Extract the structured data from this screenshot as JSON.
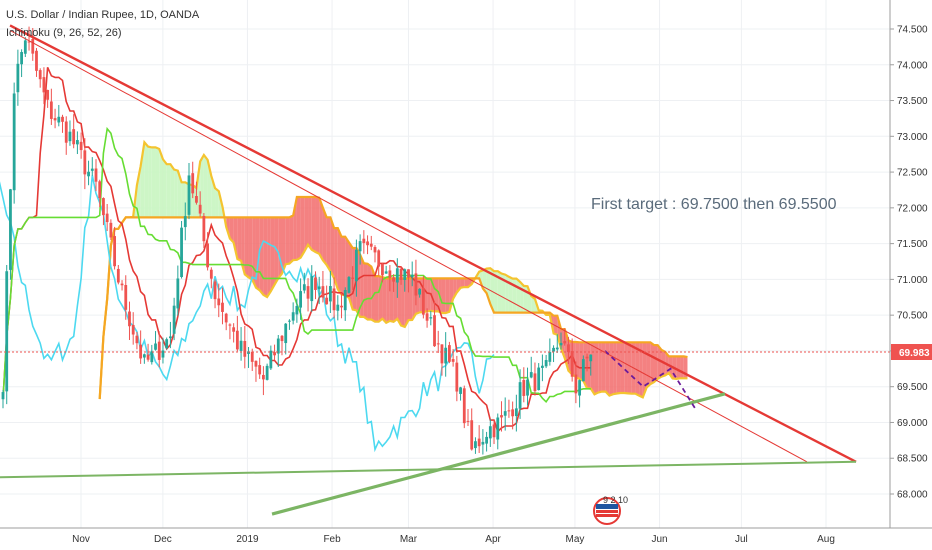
{
  "header": {
    "title": "U.S. Dollar / Indian Rupee, 1D, OANDA",
    "indicator": "Ichimoku (9, 26, 52, 26)"
  },
  "annotation": "First target : 69.7500 then 69.5500",
  "logo_text": "9 2 10",
  "colors": {
    "bull": "#26a69a",
    "bear": "#ef5350",
    "trend_red": "#e53935",
    "trend_green": "#7cb564",
    "conversion": "#e53935",
    "base": "#66dd33",
    "lagging": "#4dd9f0",
    "cloud_green": "#c8f5c0",
    "cloud_red": "#f26b6b",
    "span_a": "#f4c430",
    "current_line": "#ef5350",
    "projection": "#6a1b9a"
  },
  "chart_data": {
    "type": "candlestick",
    "symbol": "USDINR",
    "timeframe": "1D",
    "ylim": [
      67.7,
      74.7
    ],
    "y_ticks": [
      "74.500",
      "74.000",
      "73.500",
      "73.000",
      "72.500",
      "72.000",
      "71.500",
      "71.000",
      "70.500",
      "70.000",
      "69.500",
      "69.000",
      "68.500",
      "68.000"
    ],
    "x_ticks": [
      "Nov",
      "Dec",
      "2019",
      "Feb",
      "Mar",
      "Apr",
      "May",
      "Jun",
      "Jul",
      "Aug"
    ],
    "current_price": "69.983",
    "grid": true,
    "series": [
      {
        "name": "Ichimoku (9, 26, 52, 26)"
      }
    ],
    "trendlines": [
      {
        "style": "thick red",
        "from": [
          "2018-10-06",
          74.55
        ],
        "to": [
          "2019-08-12",
          68.45
        ]
      },
      {
        "style": "thin red",
        "from": [
          "2018-10-06",
          74.48
        ],
        "to": [
          "2019-07-25",
          68.45
        ]
      },
      {
        "style": "thick green",
        "from": [
          "2019-01-10",
          67.72
        ],
        "to": [
          "2019-06-25",
          69.4
        ]
      },
      {
        "style": "green",
        "from": [
          "2018-09-27",
          68.23
        ],
        "to": [
          "2019-08-12",
          68.45
        ]
      }
    ]
  }
}
